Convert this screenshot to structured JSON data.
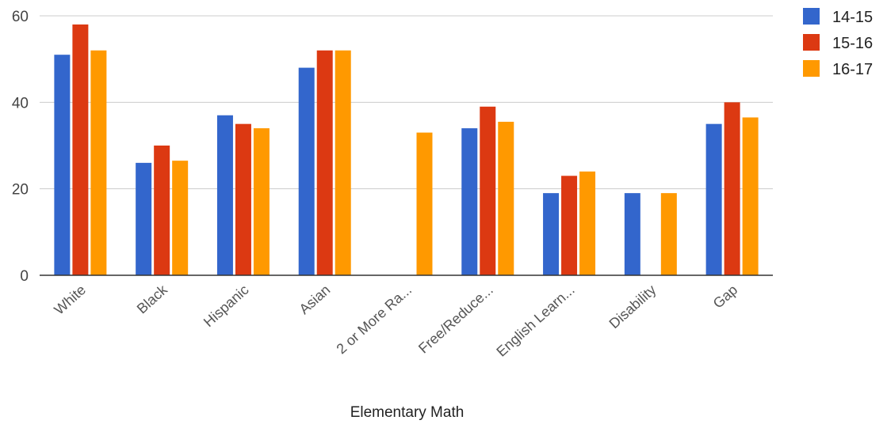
{
  "chart_data": {
    "type": "bar",
    "title": "",
    "xlabel": "Elementary Math",
    "ylabel": "",
    "ylim": [
      0,
      60
    ],
    "yticks": [
      0,
      20,
      40,
      60
    ],
    "grid": true,
    "legend_position": "top-right",
    "categories": [
      "White",
      "Black",
      "Hispanic",
      "Asian",
      "2 or More Ra...",
      "Free/Reduce...",
      "English Learn...",
      "Disability",
      "Gap"
    ],
    "series": [
      {
        "name": "14-15",
        "color": "#3366cc",
        "values": [
          51,
          26,
          37,
          48,
          null,
          34,
          19,
          19,
          35
        ]
      },
      {
        "name": "15-16",
        "color": "#dc3912",
        "values": [
          58,
          30,
          35,
          52,
          null,
          39,
          23,
          null,
          40
        ]
      },
      {
        "name": "16-17",
        "color": "#ff9900",
        "values": [
          52,
          26.5,
          34,
          52,
          33,
          35.5,
          24,
          19,
          36.5
        ]
      }
    ]
  }
}
